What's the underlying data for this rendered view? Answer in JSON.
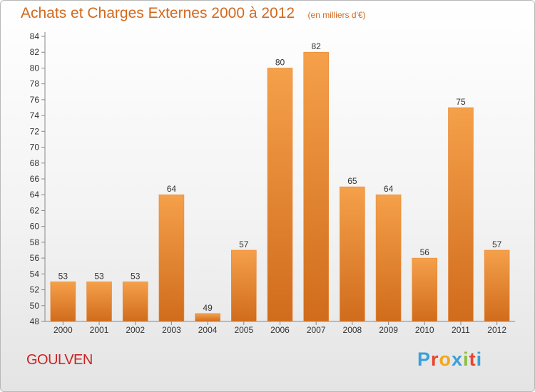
{
  "chart_data": {
    "type": "bar",
    "title": "Achats et Charges Externes 2000 à 2012",
    "subtitle": "(en milliers d'€)",
    "categories": [
      "2000",
      "2001",
      "2002",
      "2003",
      "2004",
      "2005",
      "2006",
      "2007",
      "2008",
      "2009",
      "2010",
      "2011",
      "2012"
    ],
    "values": [
      53,
      53,
      53,
      64,
      49,
      57,
      80,
      82,
      65,
      64,
      56,
      75,
      57
    ],
    "ylim": [
      48,
      84
    ],
    "yticks": [
      "48",
      "50",
      "52",
      "54",
      "56",
      "58",
      "60",
      "62",
      "64",
      "66",
      "68",
      "70",
      "72",
      "74",
      "76",
      "78",
      "80",
      "82",
      "84"
    ],
    "grid": false,
    "bar_color": "#f5a04a",
    "bar_color_dark": "#d06c1c"
  },
  "location": "GOULVEN",
  "logo": {
    "letters": [
      "P",
      "r",
      "o",
      "x",
      "i",
      "t",
      "i"
    ],
    "colors": [
      "#3aa0d8",
      "#e8452c",
      "#f2a71c",
      "#3aa0d8",
      "#8bbd3a",
      "#e8452c",
      "#3aa0d8"
    ]
  }
}
